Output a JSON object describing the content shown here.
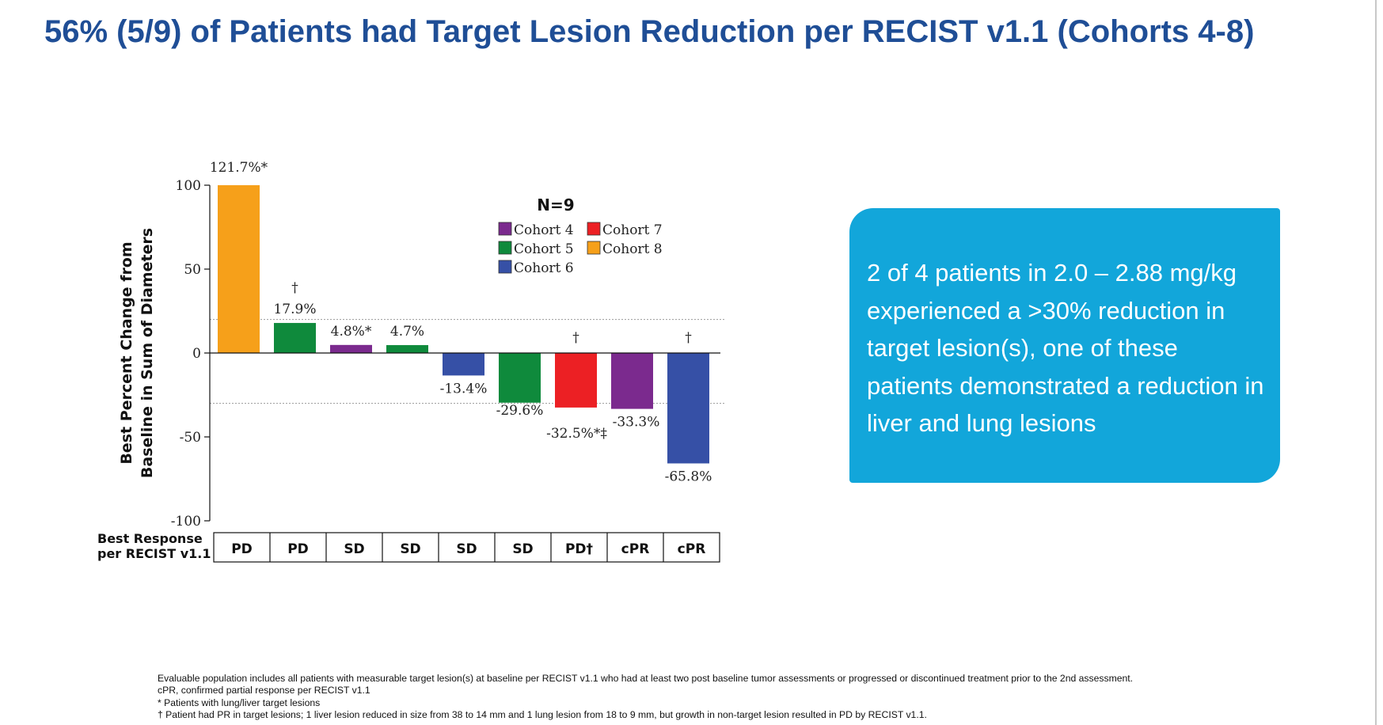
{
  "slide": {
    "title": "56% (5/9) of Patients had Target Lesion Reduction per RECIST v1.1 (Cohorts 4-8)"
  },
  "chart_data": {
    "type": "bar",
    "ylabel_line1": "Best Percent Change from",
    "ylabel_line2": "Baseline in Sum of Diameters",
    "ylim": [
      -100,
      100
    ],
    "yticks": [
      100,
      50,
      0,
      -50,
      -100
    ],
    "reference_lines": [
      20,
      -30
    ],
    "legend_title": "N=9",
    "legend_position": "top-center",
    "cohorts": [
      {
        "name": "Cohort 4",
        "color": "#7b2a8e"
      },
      {
        "name": "Cohort 5",
        "color": "#0f8a3c"
      },
      {
        "name": "Cohort 6",
        "color": "#3650a6"
      },
      {
        "name": "Cohort 7",
        "color": "#ec2024"
      },
      {
        "name": "Cohort 8",
        "color": "#f6a01a"
      }
    ],
    "bars": [
      {
        "value": 121.7,
        "display_value": 100,
        "label": "121.7%*",
        "marker": "",
        "cohort": "Cohort 8",
        "response": "PD"
      },
      {
        "value": 17.9,
        "label": "17.9%",
        "marker": "†",
        "cohort": "Cohort 5",
        "response": "PD"
      },
      {
        "value": 4.8,
        "label": "4.8%*",
        "marker": "",
        "cohort": "Cohort 4",
        "response": "SD"
      },
      {
        "value": 4.7,
        "label": "4.7%",
        "marker": "",
        "cohort": "Cohort 5",
        "response": "SD"
      },
      {
        "value": -13.4,
        "label": "-13.4%",
        "marker": "",
        "cohort": "Cohort 6",
        "response": "SD"
      },
      {
        "value": -29.6,
        "label": "-29.6%",
        "marker": "",
        "cohort": "Cohort 5",
        "response": "SD"
      },
      {
        "value": -32.5,
        "label": "-32.5%*‡",
        "marker": "†",
        "cohort": "Cohort 7",
        "response": "PD†"
      },
      {
        "value": -33.3,
        "label": "-33.3%",
        "marker": "",
        "cohort": "Cohort 4",
        "response": "cPR"
      },
      {
        "value": -65.8,
        "label": "-65.8%",
        "marker": "†",
        "cohort": "Cohort 6",
        "response": "cPR"
      }
    ],
    "response_row_label_line1": "Best Response",
    "response_row_label_line2": "per RECIST v1.1"
  },
  "callout": {
    "text": "2 of 4 patients in 2.0 – 2.88 mg/kg experienced a >30% reduction in target lesion(s), one of these patients demonstrated a reduction in liver and lung lesions"
  },
  "footnotes": [
    "Evaluable population includes all patients with measurable target lesion(s) at baseline per RECIST v1.1 who had at least two post baseline tumor assessments or progressed or discontinued treatment prior to the 2nd assessment.",
    "cPR, confirmed partial response per RECIST v1.1",
    "* Patients with lung/liver target lesions",
    "† Patient had PR in target lesions; 1 liver lesion reduced in size from 38 to 14 mm and 1 lung lesion from 18 to 9 mm, but growth in non-target lesion resulted in PD by RECIST v1.1."
  ]
}
